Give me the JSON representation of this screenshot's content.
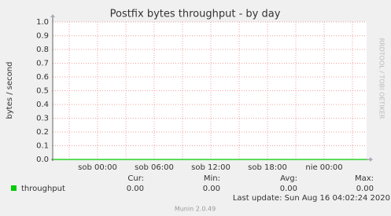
{
  "chart_data": {
    "type": "line",
    "title": "Postfix bytes throughput - by day",
    "y_label": "bytes / second",
    "watermark": "RRDTOOL / TOBI OETIKER",
    "categories": [
      null,
      "sob 00:00",
      "sob 06:00",
      "sob 12:00",
      "sob 18:00",
      "nie 00:00",
      null
    ],
    "series": [
      {
        "name": "throughput",
        "color": "#00cc00",
        "values": [
          0,
          0,
          0,
          0,
          0,
          0,
          0
        ],
        "summary": [
          0,
          0,
          0,
          0
        ],
        "summary_labels": [
          "0.00",
          "0.00",
          "0.00",
          "0.00"
        ]
      }
    ],
    "summary_headers": [
      "Cur:",
      "Min:",
      "Avg:",
      "Max:"
    ],
    "ylim": [
      0,
      1
    ],
    "yticks": [
      {
        "value": 0,
        "label": "0.0"
      },
      0.1,
      0.2,
      0.3,
      0.4,
      0.5,
      0.6,
      0.7,
      0.8,
      0.9,
      {
        "value": 1,
        "label": "1.0"
      }
    ],
    "grid": true,
    "last_update": "Last update: Sun Aug 16 04:02:24 2020",
    "footer": "Munin 2.0.49"
  }
}
